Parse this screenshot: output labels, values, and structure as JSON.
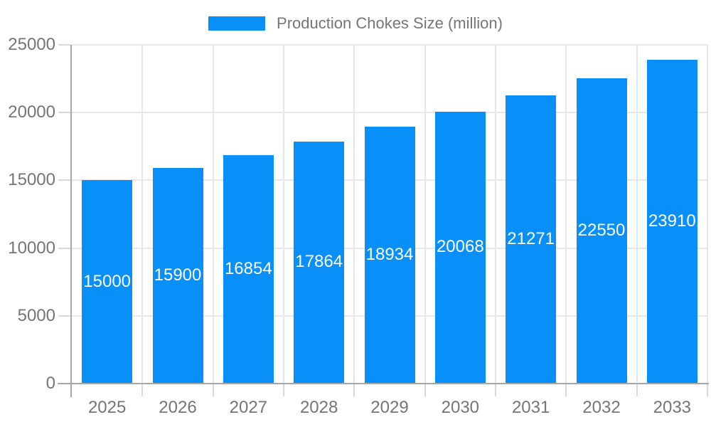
{
  "legend": {
    "label": "Production Chokes Size (million)"
  },
  "colors": {
    "bar": "#0890F8",
    "grid": "#e7e7e7",
    "axis": "#a6a6a6",
    "tick": "#d9d9d9",
    "text": "#757575",
    "bar_label": "#ffffff",
    "background": "#ffffff"
  },
  "chart_data": {
    "type": "bar",
    "title": "Production Chokes Size (million)",
    "series_name": "Production Chokes Size (million)",
    "categories": [
      "2025",
      "2026",
      "2027",
      "2028",
      "2029",
      "2030",
      "2031",
      "2032",
      "2033"
    ],
    "values": [
      15000,
      15900,
      16854,
      17864,
      18934,
      20068,
      21271,
      22550,
      23910
    ],
    "xlabel": "",
    "ylabel": "",
    "ylim": [
      0,
      25000
    ],
    "yticks": [
      0,
      5000,
      10000,
      15000,
      20000,
      25000
    ],
    "grid": true,
    "legend_position": "top-center",
    "bar_labels": "inside-centered"
  }
}
